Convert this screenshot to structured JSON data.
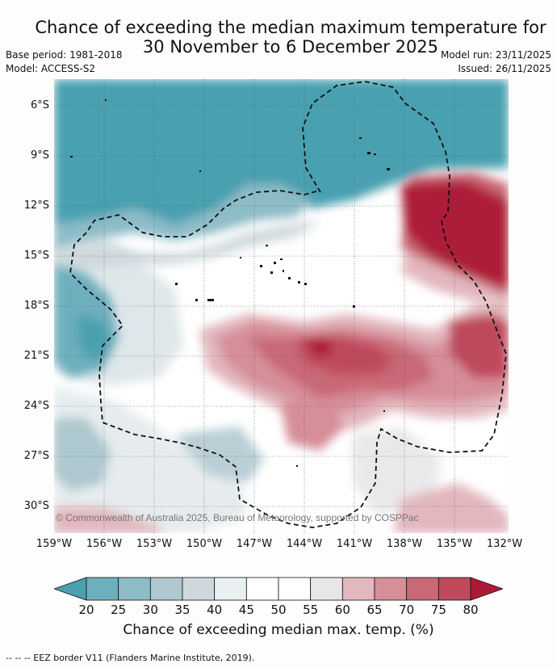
{
  "title_line1": "Chance of exceeding the median maximum temperature for",
  "title_line2": "30 November to 6 December 2025",
  "base_period": "Base period: 1981-2018",
  "model": "Model: ACCESS-S2",
  "model_run": "Model run: 23/11/2025",
  "issued": "Issued: 26/11/2025",
  "copyright": "© Commonwealth of Australia 2025, Bureau of Meteorology, supported by COSPPac",
  "lat_labels": [
    "6°S",
    "9°S",
    "12°S",
    "15°S",
    "18°S",
    "21°S",
    "24°S",
    "27°S",
    "30°S"
  ],
  "lon_labels": [
    "159°W",
    "156°W",
    "153°W",
    "150°W",
    "147°W",
    "144°W",
    "141°W",
    "138°W",
    "135°W",
    "132°W"
  ],
  "colorbar": {
    "ticks": [
      "20",
      "25",
      "30",
      "35",
      "40",
      "45",
      "50",
      "55",
      "60",
      "65",
      "70",
      "75",
      "80"
    ],
    "colors": [
      "#4aa0b0",
      "#6eafbd",
      "#8dbcc7",
      "#adc8ce",
      "#cfd9dd",
      "#eaeff1",
      "#ffffff",
      "#ffffff",
      "#e8e6e6",
      "#e2b7bd",
      "#d68e99",
      "#c96876",
      "#bf4a5c",
      "#ad1a37"
    ],
    "title": "Chance of exceeding median max. temp. (%)"
  },
  "footer": "--  --  -- EEZ border V11 (Flanders Marine Institute, 2019)."
}
